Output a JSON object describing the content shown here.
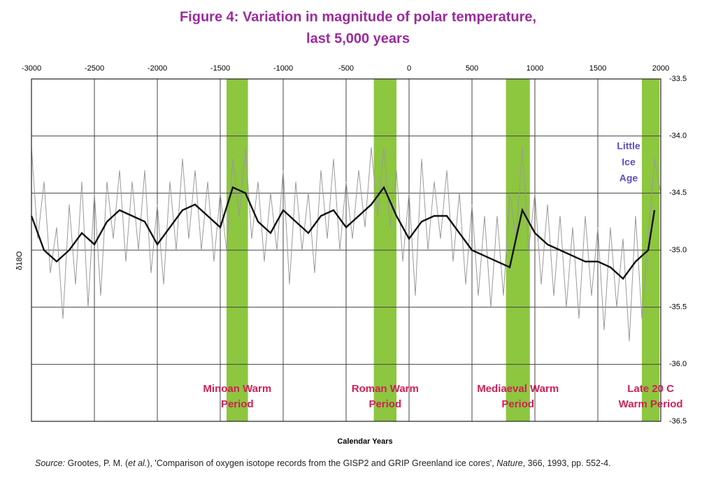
{
  "chart_data": {
    "type": "line",
    "title": [
      "Figure 4: Variation in magnitude of polar temperature,",
      "last 5,000 years"
    ],
    "xlabel": "Calendar Years",
    "ylabel": "δ18O",
    "xlim": [
      -3000,
      2000
    ],
    "xticks": [
      -3000,
      -2500,
      -2000,
      -1500,
      -1000,
      -500,
      0,
      500,
      1000,
      1500,
      2000
    ],
    "ylim": [
      -36.5,
      -33.5
    ],
    "yticks": [
      -33.5,
      {
        "value": -34,
        "label": "-34.0"
      },
      -34.5,
      {
        "value": -35,
        "label": "-35.0"
      },
      -35.5,
      {
        "value": -36,
        "label": "-36.0"
      },
      -36.5
    ],
    "grid": true,
    "bands": [
      {
        "label": [
          "Minoan Warm",
          "Period"
        ],
        "start": -1450,
        "end": -1280,
        "color": "#8dc63f"
      },
      {
        "label": [
          "Roman Warm",
          "Period"
        ],
        "start": -280,
        "end": -100,
        "color": "#8dc63f"
      },
      {
        "label": [
          "Mediaeval Warm",
          "Period"
        ],
        "start": 770,
        "end": 960,
        "color": "#8dc63f"
      },
      {
        "label": [
          "Late 20 C",
          "Warm Period"
        ],
        "start": 1850,
        "end": 1990,
        "color": "#8dc63f"
      }
    ],
    "annotations": [
      {
        "text": [
          "Little",
          "Ice",
          "Age"
        ],
        "x": 1700
      }
    ],
    "series": [
      {
        "name": "raw",
        "color": "#9a9a9a",
        "x": [
          -3000,
          -2950,
          -2900,
          -2850,
          -2800,
          -2750,
          -2700,
          -2650,
          -2600,
          -2550,
          -2500,
          -2450,
          -2400,
          -2350,
          -2300,
          -2250,
          -2200,
          -2150,
          -2100,
          -2050,
          -2000,
          -1950,
          -1900,
          -1850,
          -1800,
          -1750,
          -1700,
          -1650,
          -1600,
          -1550,
          -1500,
          -1450,
          -1400,
          -1350,
          -1300,
          -1250,
          -1200,
          -1150,
          -1100,
          -1050,
          -1000,
          -950,
          -900,
          -850,
          -800,
          -750,
          -700,
          -650,
          -600,
          -550,
          -500,
          -450,
          -400,
          -350,
          -300,
          -250,
          -200,
          -150,
          -100,
          -50,
          0,
          50,
          100,
          150,
          200,
          250,
          300,
          350,
          400,
          450,
          500,
          550,
          600,
          650,
          700,
          750,
          800,
          850,
          900,
          950,
          1000,
          1050,
          1100,
          1150,
          1200,
          1250,
          1300,
          1350,
          1400,
          1450,
          1500,
          1550,
          1600,
          1650,
          1700,
          1750,
          1800,
          1850,
          1900,
          1950,
          2000
        ],
        "values": [
          -34.1,
          -34.9,
          -34.4,
          -35.2,
          -34.8,
          -35.6,
          -34.6,
          -35.3,
          -34.4,
          -35.5,
          -34.5,
          -35.4,
          -34.4,
          -34.9,
          -34.3,
          -35.1,
          -34.4,
          -35.0,
          -34.3,
          -35.2,
          -34.6,
          -35.3,
          -34.4,
          -35.0,
          -34.2,
          -34.9,
          -34.3,
          -35.0,
          -34.4,
          -35.1,
          -34.5,
          -35.0,
          -34.2,
          -34.7,
          -34.1,
          -34.9,
          -34.4,
          -35.1,
          -34.5,
          -35.0,
          -34.3,
          -35.3,
          -34.4,
          -35.0,
          -34.5,
          -35.2,
          -34.3,
          -34.9,
          -34.2,
          -35.0,
          -34.4,
          -34.9,
          -34.3,
          -34.8,
          -34.1,
          -34.7,
          -34.1,
          -34.8,
          -34.3,
          -35.1,
          -34.5,
          -35.4,
          -34.2,
          -35.0,
          -34.4,
          -34.9,
          -34.3,
          -35.1,
          -34.5,
          -35.3,
          -34.6,
          -35.4,
          -34.7,
          -35.5,
          -34.7,
          -35.4,
          -34.5,
          -34.9,
          -34.1,
          -35.0,
          -34.5,
          -35.3,
          -34.6,
          -35.4,
          -34.7,
          -35.5,
          -34.8,
          -35.6,
          -34.7,
          -35.4,
          -34.8,
          -35.7,
          -34.8,
          -35.5,
          -34.9,
          -35.8,
          -34.7,
          -35.6,
          -34.9,
          -34.2,
          -34.5
        ]
      },
      {
        "name": "smoothed",
        "color": "#111111",
        "x": [
          -3000,
          -2900,
          -2800,
          -2700,
          -2600,
          -2500,
          -2400,
          -2300,
          -2200,
          -2100,
          -2000,
          -1900,
          -1800,
          -1700,
          -1600,
          -1500,
          -1400,
          -1300,
          -1200,
          -1100,
          -1000,
          -900,
          -800,
          -700,
          -600,
          -500,
          -400,
          -300,
          -200,
          -100,
          0,
          100,
          200,
          300,
          400,
          500,
          600,
          700,
          800,
          900,
          1000,
          1100,
          1200,
          1300,
          1400,
          1500,
          1600,
          1700,
          1800,
          1900,
          1950
        ],
        "values": [
          -34.7,
          -35.0,
          -35.1,
          -35.0,
          -34.85,
          -34.95,
          -34.75,
          -34.65,
          -34.7,
          -34.75,
          -34.95,
          -34.8,
          -34.65,
          -34.6,
          -34.7,
          -34.8,
          -34.45,
          -34.5,
          -34.75,
          -34.85,
          -34.65,
          -34.75,
          -34.85,
          -34.7,
          -34.65,
          -34.8,
          -34.7,
          -34.6,
          -34.45,
          -34.7,
          -34.9,
          -34.75,
          -34.7,
          -34.7,
          -34.85,
          -35.0,
          -35.05,
          -35.1,
          -35.15,
          -34.65,
          -34.85,
          -34.95,
          -35.0,
          -35.05,
          -35.1,
          -35.1,
          -35.15,
          -35.25,
          -35.1,
          -35.0,
          -34.65
        ]
      }
    ],
    "source": [
      {
        "text": "Source:",
        "italic": true
      },
      {
        "text": " Grootes, P. M. ("
      },
      {
        "text": "et al.",
        "italic": true
      },
      {
        "text": "), 'Comparison of oxygen isotope records from the GISP2 and GRIP Greenland ice cores', "
      },
      {
        "text": "Nature",
        "italic": true
      },
      {
        "text": ", 366, 1993, pp. 552-4."
      }
    ]
  }
}
